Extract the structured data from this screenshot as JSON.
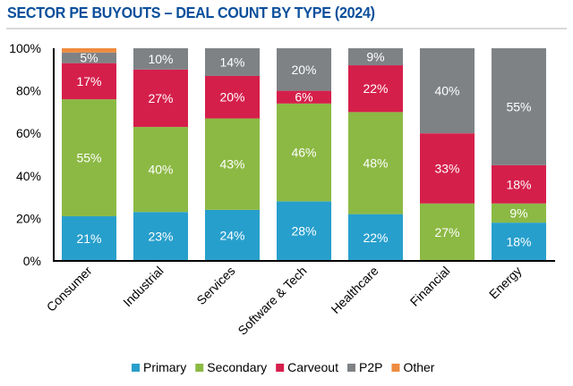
{
  "chart_data": {
    "type": "bar",
    "stacked": true,
    "title": "SECTOR PE BUYOUTS – DEAL COUNT BY TYPE (2024)",
    "xlabel": "",
    "ylabel": "",
    "ylim": [
      0,
      100
    ],
    "yticks": [
      "0%",
      "20%",
      "40%",
      "60%",
      "80%",
      "100%"
    ],
    "categories": [
      "Consumer",
      "Industrial",
      "Services",
      "Software & Tech",
      "Healthcare",
      "Financial",
      "Energy"
    ],
    "series": [
      {
        "name": "Primary",
        "color": "#279fcc",
        "values": [
          21,
          23,
          24,
          28,
          22,
          0,
          18
        ]
      },
      {
        "name": "Secondary",
        "color": "#8cb944",
        "values": [
          55,
          40,
          43,
          46,
          48,
          27,
          9
        ]
      },
      {
        "name": "Carveout",
        "color": "#d51f4b",
        "values": [
          17,
          27,
          20,
          6,
          22,
          33,
          18
        ]
      },
      {
        "name": "P2P",
        "color": "#7f8285",
        "values": [
          5,
          10,
          14,
          20,
          9,
          40,
          55
        ]
      },
      {
        "name": "Other",
        "color": "#ef8b3f",
        "values": [
          2,
          0,
          0,
          0,
          0,
          0,
          0
        ]
      }
    ],
    "data_labels": [
      [
        "21%",
        "55%",
        "17%",
        "5%",
        ""
      ],
      [
        "23%",
        "40%",
        "27%",
        "10%",
        ""
      ],
      [
        "24%",
        "43%",
        "20%",
        "14%",
        ""
      ],
      [
        "28%",
        "46%",
        "6%",
        "20%",
        ""
      ],
      [
        "22%",
        "48%",
        "22%",
        "9%",
        ""
      ],
      [
        "",
        "27%",
        "33%",
        "40%",
        ""
      ],
      [
        "18%",
        "9%",
        "18%",
        "55%",
        ""
      ]
    ],
    "legend_position": "bottom",
    "grid": false
  }
}
